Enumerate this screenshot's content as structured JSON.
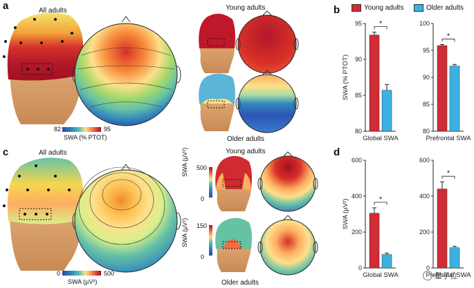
{
  "panels": {
    "a": {
      "letter": "a",
      "all_adults": "All adults",
      "young_adults": "Young adults",
      "older_adults": "Older adults",
      "colorbar_min": "82",
      "colorbar_max": "95",
      "colorbar_label": "SWA (% PTOT)"
    },
    "c": {
      "letter": "c",
      "all_adults": "All adults",
      "young_adults": "Young adults",
      "older_adults": "Older adults",
      "colorbar_min": "0",
      "colorbar_max": "500",
      "colorbar_label": "SWA (µV²)",
      "young_scale_max": "500",
      "young_scale_min": "0",
      "older_scale_max": "150",
      "older_scale_min": "0",
      "side_axis_label": "SWA (µV²)"
    },
    "b": {
      "letter": "b"
    },
    "d": {
      "letter": "d"
    }
  },
  "legend": {
    "young": "Young adults",
    "older": "Older adults"
  },
  "colors": {
    "young": "#d12b34",
    "older": "#3ab1e2"
  },
  "watermark": "量子位",
  "chart_data": [
    {
      "type": "bar",
      "panel": "b",
      "title": "",
      "xlabel": "Global SWA",
      "ylabel": "SWA (% PTOT)",
      "ylim": [
        80,
        95
      ],
      "yticks": [
        "80",
        "85",
        "90",
        "95"
      ],
      "series": [
        {
          "name": "Young adults",
          "values": [
            93.4
          ]
        },
        {
          "name": "Older adults",
          "values": [
            85.7
          ]
        }
      ],
      "errors": [
        0.4,
        0.8
      ],
      "significance": "*"
    },
    {
      "type": "bar",
      "panel": "b",
      "title": "",
      "xlabel": "Prefrontal SWA",
      "ylabel": "",
      "ylim": [
        80,
        100
      ],
      "yticks": [
        "80",
        "85",
        "90",
        "95",
        "100"
      ],
      "series": [
        {
          "name": "Young adults",
          "values": [
            95.9
          ]
        },
        {
          "name": "Older adults",
          "values": [
            92.1
          ]
        }
      ],
      "errors": [
        0.2,
        0.3
      ],
      "significance": "*"
    },
    {
      "type": "bar",
      "panel": "d",
      "title": "",
      "xlabel": "Global SWA",
      "ylabel": "SWA (µV²)",
      "ylim": [
        0,
        600
      ],
      "yticks": [
        "0",
        "200",
        "400",
        "600"
      ],
      "series": [
        {
          "name": "Young adults",
          "values": [
            305
          ]
        },
        {
          "name": "Older adults",
          "values": [
            75
          ]
        }
      ],
      "errors": [
        30,
        8
      ],
      "significance": "*"
    },
    {
      "type": "bar",
      "panel": "d",
      "title": "",
      "xlabel": "Prefrontal SWA",
      "ylabel": "",
      "ylim": [
        0,
        600
      ],
      "yticks": [
        "0",
        "200",
        "400",
        "600"
      ],
      "series": [
        {
          "name": "Young adults",
          "values": [
            440
          ]
        },
        {
          "name": "Older adults",
          "values": [
            113
          ]
        }
      ],
      "errors": [
        40,
        8
      ],
      "significance": "*"
    }
  ]
}
